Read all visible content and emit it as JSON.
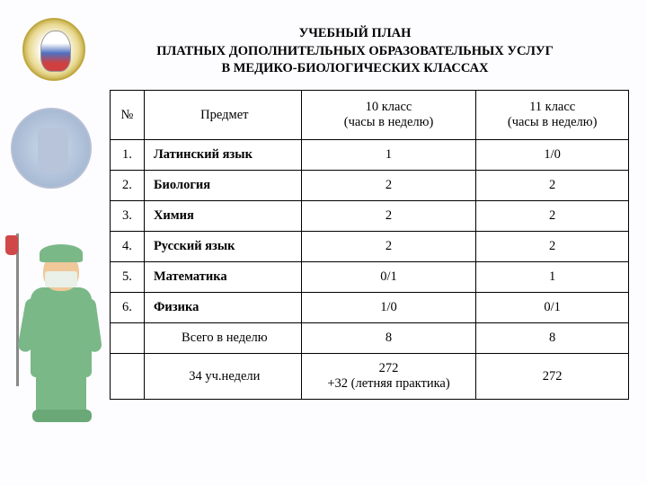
{
  "title": {
    "line1": "УЧЕБНЫЙ ПЛАН",
    "line2": "ПЛАТНЫХ ДОПОЛНИТЕЛЬНЫХ ОБРАЗОВАТЕЛЬНЫХ УСЛУГ",
    "line3": "В МЕДИКО-БИОЛОГИЧЕСКИХ КЛАССАХ"
  },
  "table": {
    "headers": {
      "num": "№",
      "subject": "Предмет",
      "class10": "10 класс\n(часы в неделю)",
      "class11": "11 класс\n(часы в неделю)"
    },
    "rows": [
      {
        "n": "1.",
        "subject": "Латинский язык",
        "c10": "1",
        "c11": "1/0"
      },
      {
        "n": "2.",
        "subject": "Биология",
        "c10": "2",
        "c11": "2"
      },
      {
        "n": "3.",
        "subject": "Химия",
        "c10": "2",
        "c11": "2"
      },
      {
        "n": "4.",
        "subject": "Русский язык",
        "c10": "2",
        "c11": "2"
      },
      {
        "n": "5.",
        "subject": "Математика",
        "c10": "0/1",
        "c11": "1"
      },
      {
        "n": "6.",
        "subject": "Физика",
        "c10": "1/0",
        "c11": "0/1"
      }
    ],
    "totals": {
      "week_label": "Всего в неделю",
      "week_c10": "8",
      "week_c11": "8",
      "year_label": "34 уч.недели",
      "year_c10": "272\n+32 (летняя практика)",
      "year_c11": "272"
    }
  },
  "style": {
    "background_color": "#fdfcff",
    "border_color": "#000000",
    "font_family": "Times New Roman",
    "title_fontsize_pt": 11,
    "table_fontsize_pt": 11
  }
}
